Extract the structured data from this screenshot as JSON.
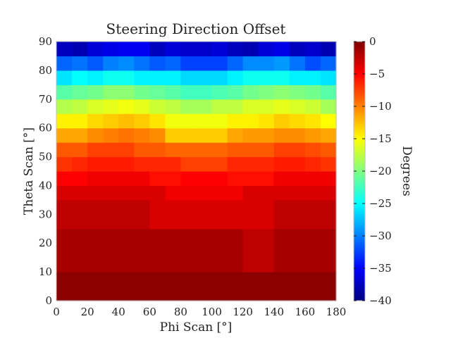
{
  "chart_data": {
    "type": "heatmap",
    "title": "Steering Direction Offset",
    "xlabel": "Phi Scan [°]",
    "ylabel": "Theta Scan [°]",
    "colorbar_label": "Degrees",
    "colormap": "jet",
    "xlim": [
      0,
      180
    ],
    "ylim": [
      0,
      90
    ],
    "clim": [
      -40,
      0
    ],
    "x_tick_labels": [
      "0",
      "20",
      "40",
      "60",
      "80",
      "100",
      "120",
      "140",
      "160",
      "180"
    ],
    "y_tick_labels": [
      "0",
      "10",
      "20",
      "30",
      "40",
      "50",
      "60",
      "70",
      "80",
      "90"
    ],
    "colorbar_tick_labels": [
      "0",
      "−5",
      "−10",
      "−15",
      "−20",
      "−25",
      "−30",
      "−35",
      "−40"
    ],
    "x_bin_edges": [
      0,
      10,
      20,
      30,
      40,
      50,
      60,
      70,
      80,
      90,
      100,
      110,
      120,
      130,
      140,
      150,
      160,
      170,
      180
    ],
    "y_bin_edges": [
      0,
      10,
      25,
      35,
      40,
      45,
      50,
      55,
      60,
      65,
      70,
      75,
      80,
      85,
      90
    ],
    "values": [
      [
        -0.5,
        -0.5,
        -0.5,
        -0.5,
        -0.5,
        -0.5,
        -0.5,
        -0.5,
        -0.5,
        -0.5,
        -0.5,
        -0.5,
        -0.5,
        -0.5,
        -0.5,
        -0.5,
        -0.5,
        -0.5
      ],
      [
        -1.5,
        -1.5,
        -1.5,
        -1.5,
        -1.5,
        -1.5,
        -1.5,
        -1.5,
        -1.5,
        -1.5,
        -1.5,
        -1.5,
        -2.5,
        -2.5,
        -1.5,
        -1.5,
        -1.5,
        -1.5
      ],
      [
        -2.5,
        -2.5,
        -2.5,
        -2.5,
        -2.5,
        -2.5,
        -3.5,
        -3.5,
        -3.5,
        -3.5,
        -3.5,
        -3.5,
        -3.5,
        -3.5,
        -2.5,
        -2.5,
        -2.5,
        -2.5
      ],
      [
        -3.5,
        -3.5,
        -3.5,
        -3.5,
        -3.5,
        -3.5,
        -3.5,
        -4.5,
        -4.5,
        -4.5,
        -4.5,
        -4.5,
        -3.5,
        -3.5,
        -3.5,
        -3.5,
        -3.5,
        -3.5
      ],
      [
        -5,
        -5,
        -4.5,
        -4.5,
        -4.5,
        -4.5,
        -5.5,
        -5.5,
        -5,
        -5,
        -5,
        -5.5,
        -5.5,
        -5.5,
        -4.5,
        -4.5,
        -4.5,
        -4.5
      ],
      [
        -7,
        -6.5,
        -6,
        -6,
        -6,
        -6.5,
        -6.5,
        -6.5,
        -7.5,
        -7.5,
        -7.5,
        -6.5,
        -6.5,
        -6.5,
        -6,
        -6,
        -6.5,
        -7
      ],
      [
        -8.5,
        -8.5,
        -7.5,
        -7.5,
        -7.5,
        -8.5,
        -8.5,
        -9,
        -9,
        -9,
        -9,
        -8.5,
        -8.5,
        -8.5,
        -7.5,
        -7.5,
        -8,
        -8.5
      ],
      [
        -11.5,
        -11.5,
        -10.5,
        -10,
        -9.5,
        -10,
        -10.5,
        -13,
        -13,
        -13,
        -13,
        -11.5,
        -11,
        -11,
        -10.5,
        -10.5,
        -11,
        -11.5
      ],
      [
        -14.5,
        -14.5,
        -13.5,
        -13,
        -12.5,
        -13,
        -14,
        -15.5,
        -15.5,
        -15.5,
        -15.5,
        -14.5,
        -14.5,
        -14,
        -13,
        -13.5,
        -14,
        -15
      ],
      [
        -18,
        -17.5,
        -16.5,
        -16,
        -15.5,
        -16,
        -17,
        -17.5,
        -18.5,
        -18.5,
        -17.5,
        -17.5,
        -16.5,
        -16.5,
        -16,
        -16.5,
        -17,
        -18.5
      ],
      [
        -21.5,
        -21,
        -20.5,
        -19.5,
        -19.5,
        -20.5,
        -21,
        -21.5,
        -22.5,
        -22.5,
        -22,
        -21.5,
        -20.5,
        -20,
        -19.5,
        -20,
        -20.5,
        -21.5
      ],
      [
        -26,
        -25,
        -25.5,
        -24.5,
        -24.5,
        -25.5,
        -25.5,
        -25.5,
        -26.5,
        -26.5,
        -26.5,
        -25.5,
        -24.5,
        -24.5,
        -24.5,
        -25.5,
        -25.5,
        -26
      ],
      [
        -31,
        -30.5,
        -31.5,
        -30,
        -29.5,
        -30.5,
        -31.5,
        -31,
        -32.5,
        -32.5,
        -32.5,
        -31,
        -29.5,
        -29.5,
        -29,
        -30.5,
        -32,
        -31
      ],
      [
        -37.5,
        -38,
        -36.5,
        -36,
        -35.5,
        -35.5,
        -37.5,
        -36.5,
        -37,
        -37,
        -36.5,
        -37.5,
        -38,
        -36.5,
        -36,
        -37.5,
        -37,
        -38
      ]
    ]
  }
}
